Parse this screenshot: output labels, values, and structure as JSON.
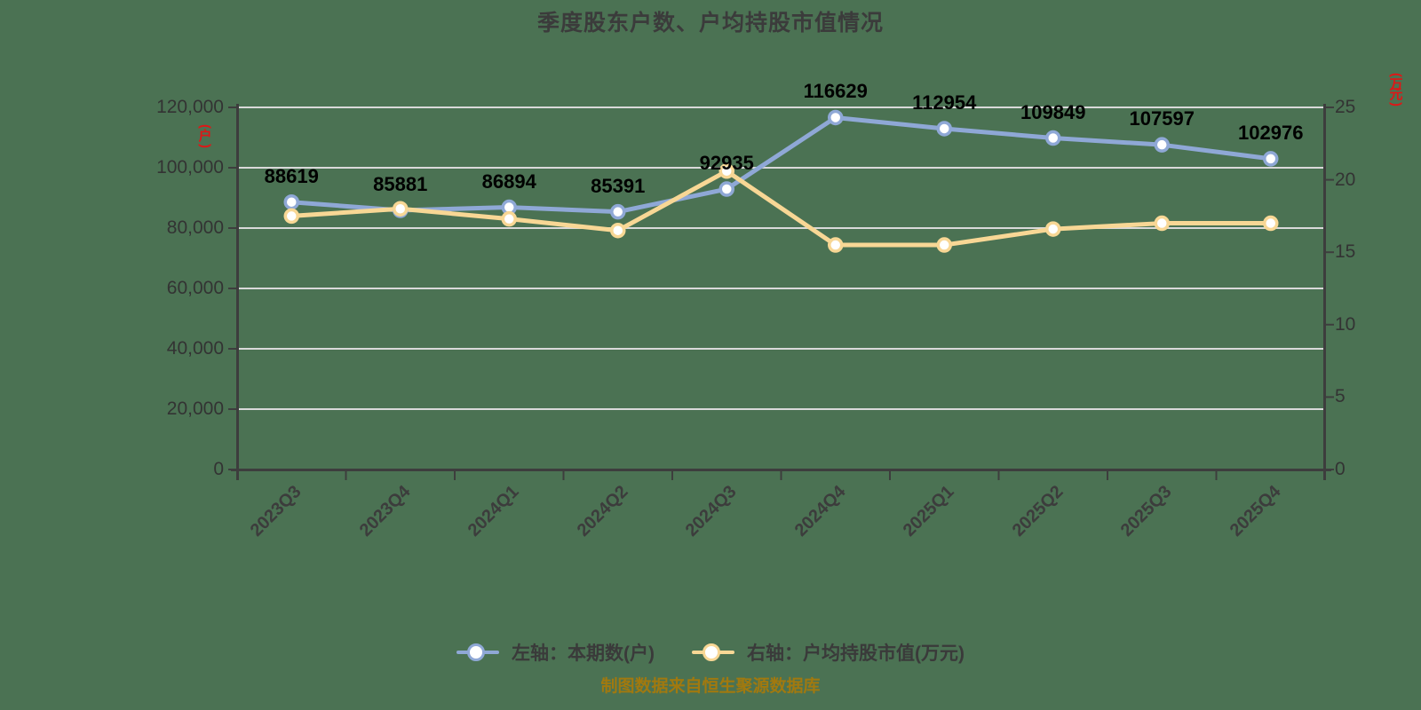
{
  "page": {
    "background_color": "#4b7253"
  },
  "chart_data": {
    "type": "line",
    "title": "季度股东户数、户均持股市值情况",
    "source_note": "制图数据来自恒生聚源数据库",
    "categories": [
      "2023Q3",
      "2023Q4",
      "2024Q1",
      "2024Q2",
      "2024Q3",
      "2024Q4",
      "2025Q1",
      "2025Q2",
      "2025Q3",
      "2025Q4"
    ],
    "series": [
      {
        "name": "左轴：本期数(户)",
        "axis": "left",
        "color": "#8fa8d6",
        "marker_fill": "#ffffff",
        "data_labels": true,
        "values": [
          88619,
          85881,
          86894,
          85391,
          92935,
          116629,
          112954,
          109849,
          107597,
          102976
        ]
      },
      {
        "name": "右轴：户均持股市值(万元)",
        "axis": "right",
        "color": "#f8d795",
        "marker_fill": "#ffffff",
        "data_labels": false,
        "values": [
          17.5,
          18.0,
          17.3,
          16.5,
          20.6,
          15.5,
          15.5,
          16.6,
          17.0,
          17.0
        ]
      }
    ],
    "left_axis": {
      "unit": "(户)",
      "unit_color": "#e01616",
      "min": 0,
      "max": 120000,
      "tick_interval": 20000,
      "tick_labels": [
        "0",
        "20,000",
        "40,000",
        "60,000",
        "80,000",
        "100,000",
        "120,000"
      ]
    },
    "right_axis": {
      "unit": "(万元)",
      "unit_color": "#e01616",
      "min": 0,
      "max": 25,
      "tick_interval": 5,
      "tick_labels": [
        "0",
        "5",
        "10",
        "15",
        "20",
        "25"
      ]
    },
    "grid": true,
    "legend_position": "bottom",
    "colors": {
      "grid_line": "#d9d9d9",
      "axis_line": "#3d3d3d",
      "tick_text": "#333333",
      "data_label": "#000000",
      "x_label": "#3c3c3c",
      "legend_text": "#3a3a3a",
      "source_text": "#a1790f"
    }
  }
}
